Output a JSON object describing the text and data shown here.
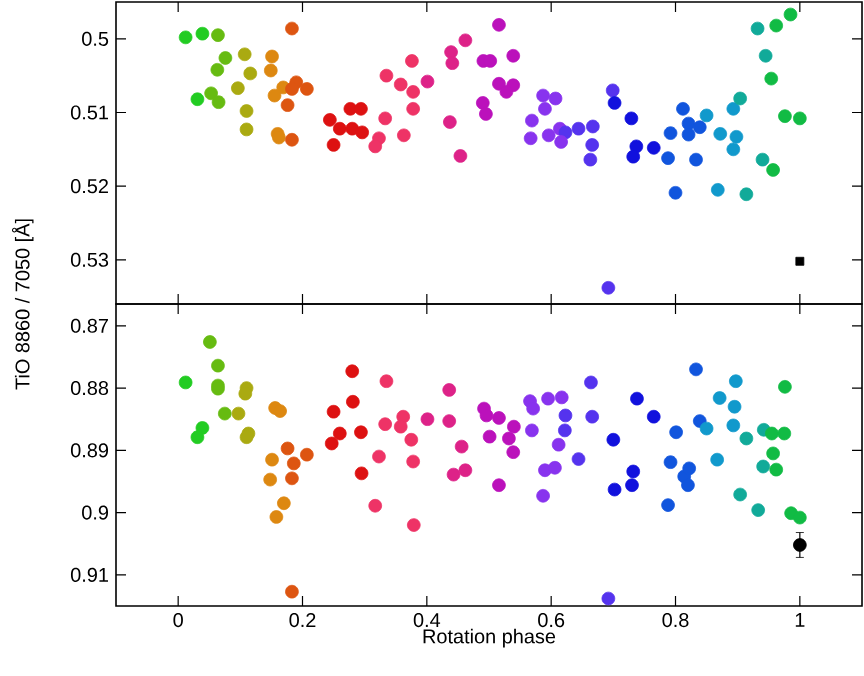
{
  "chart_data": [
    {
      "type": "scatter",
      "ylabel": "TiO 8860 / 7050 [Å]",
      "xlim": [
        -0.1,
        1.1
      ],
      "xticks": [
        0,
        0.2,
        0.4,
        0.6,
        0.8,
        1
      ],
      "ylim": [
        0.536,
        0.495
      ],
      "yticks": [
        0.5,
        0.51,
        0.52,
        0.53
      ],
      "tick_labels": "y",
      "marker": "circle",
      "series": [
        {
          "x": [
            0.012,
            0.039,
            0.064,
            0.183,
            0.076,
            0.107,
            0.151,
            0.063,
            0.116,
            0.149,
            0.031,
            0.053,
            0.065,
            0.096,
            0.155,
            0.169,
            0.19,
            0.183,
            0.207,
            0.176,
            0.11,
            0.11,
            0.16,
            0.162,
            0.183,
            0.244,
            0.26,
            0.277,
            0.294,
            0.28,
            0.296,
            0.25,
            0.323,
            0.317,
            0.333,
            0.335,
            0.358,
            0.376,
            0.378,
            0.401,
            0.378,
            0.363,
            0.439,
            0.441,
            0.462,
            0.516,
            0.491,
            0.502,
            0.539,
            0.516,
            0.539,
            0.528,
            0.49,
            0.495,
            0.437,
            0.454,
            0.587,
            0.607,
            0.59,
            0.569,
            0.567,
            0.596,
            0.614,
            0.623,
            0.616,
            0.644,
            0.667,
            0.666,
            0.663,
            0.699,
            0.702,
            0.729,
            0.692,
            0.737,
            0.732,
            0.765,
            0.788,
            0.792,
            0.812,
            0.821,
            0.821,
            0.839,
            0.85,
            0.8,
            0.833,
            0.872,
            0.893,
            0.904,
            0.898,
            0.893,
            0.868,
            0.914,
            0.94,
            0.957,
            0.932,
            0.962,
            0.985,
            0.945,
            0.954,
            0.976,
            1.0
          ],
          "values": [
            0.4998,
            0.4993,
            0.4995,
            0.4986,
            0.5026,
            0.5021,
            0.5024,
            0.5042,
            0.5047,
            0.5043,
            0.5082,
            0.5074,
            0.5086,
            0.5067,
            0.5077,
            0.5066,
            0.5059,
            0.5068,
            0.5068,
            0.509,
            0.5098,
            0.5123,
            0.5129,
            0.5134,
            0.5137,
            0.511,
            0.5122,
            0.5095,
            0.5095,
            0.5122,
            0.5127,
            0.5144,
            0.5135,
            0.5146,
            0.5108,
            0.505,
            0.5062,
            0.503,
            0.5072,
            0.5058,
            0.5095,
            0.5131,
            0.5018,
            0.5033,
            0.5002,
            0.4981,
            0.503,
            0.503,
            0.5023,
            0.5061,
            0.5063,
            0.5072,
            0.5087,
            0.5102,
            0.5113,
            0.5159,
            0.5077,
            0.5081,
            0.5095,
            0.5111,
            0.5135,
            0.5131,
            0.5122,
            0.5127,
            0.514,
            0.5122,
            0.5119,
            0.5144,
            0.5164,
            0.507,
            0.5087,
            0.5108,
            0.5338,
            0.5146,
            0.516,
            0.5148,
            0.5162,
            0.5128,
            0.5095,
            0.5115,
            0.513,
            0.512,
            0.5104,
            0.5209,
            0.5164,
            0.5129,
            0.5095,
            0.5081,
            0.5133,
            0.515,
            0.5205,
            0.5211,
            0.5164,
            0.5178,
            0.4986,
            0.4982,
            0.4967,
            0.5023,
            0.5054,
            0.5105,
            0.5108
          ],
          "colors": [
            "#22cc22",
            "#22cc22",
            "#66bb11",
            "#dd5511",
            "#66bb11",
            "#aaaa11",
            "#dd8811",
            "#66bb11",
            "#aaaa11",
            "#dd8811",
            "#22cc22",
            "#66bb11",
            "#66bb11",
            "#aaaa11",
            "#dd8811",
            "#dd8811",
            "#dd5511",
            "#dd5511",
            "#dd5511",
            "#dd5511",
            "#aaaa11",
            "#aaaa11",
            "#dd8811",
            "#dd8811",
            "#dd5511",
            "#dd1111",
            "#dd1111",
            "#dd1111",
            "#dd1111",
            "#dd1111",
            "#dd1111",
            "#dd1111",
            "#ee3366",
            "#ee3366",
            "#ee3366",
            "#ee3366",
            "#ee3366",
            "#ee3366",
            "#ee3366",
            "#dd2288",
            "#ee3366",
            "#ee3366",
            "#dd2288",
            "#dd2288",
            "#dd2288",
            "#bb11bb",
            "#bb11bb",
            "#bb11bb",
            "#bb11bb",
            "#bb11bb",
            "#bb11bb",
            "#bb11bb",
            "#bb11bb",
            "#bb11bb",
            "#dd2288",
            "#dd2288",
            "#8833ee",
            "#8833ee",
            "#8833ee",
            "#8833ee",
            "#8833ee",
            "#8833ee",
            "#8833ee",
            "#5533ee",
            "#8833ee",
            "#5533ee",
            "#5533ee",
            "#5533ee",
            "#5533ee",
            "#5533ee",
            "#1111dd",
            "#1111dd",
            "#5533ee",
            "#1111dd",
            "#1111dd",
            "#1111dd",
            "#1155dd",
            "#1155dd",
            "#1155dd",
            "#1155dd",
            "#1155dd",
            "#1155dd",
            "#1199cc",
            "#1155dd",
            "#1155dd",
            "#1199cc",
            "#1199cc",
            "#11aa99",
            "#1199cc",
            "#1199cc",
            "#1199cc",
            "#11aa99",
            "#11aa99",
            "#11bb44",
            "#11aa99",
            "#11bb44",
            "#11bb44",
            "#11aa99",
            "#11bb44",
            "#11bb44",
            "#11bb44"
          ]
        },
        {
          "x": [
            1.0
          ],
          "values": [
            0.5302
          ],
          "color": "#000000",
          "marker": "square"
        }
      ]
    },
    {
      "type": "scatter",
      "xlabel": "Rotation phase",
      "xlim": [
        -0.1,
        1.1
      ],
      "xticks": [
        0,
        0.2,
        0.4,
        0.6,
        0.8,
        1
      ],
      "ylim": [
        0.915,
        0.8665
      ],
      "yticks": [
        0.87,
        0.88,
        0.89,
        0.9,
        0.91
      ],
      "marker": "circle",
      "series": [
        {
          "x": [
            0.012,
            0.051,
            0.064,
            0.064,
            0.064,
            0.075,
            0.097,
            0.11,
            0.108,
            0.039,
            0.031,
            0.113,
            0.11,
            0.156,
            0.164,
            0.176,
            0.151,
            0.186,
            0.207,
            0.148,
            0.183,
            0.17,
            0.158,
            0.183,
            0.28,
            0.25,
            0.281,
            0.247,
            0.26,
            0.294,
            0.295,
            0.323,
            0.317,
            0.335,
            0.333,
            0.362,
            0.358,
            0.375,
            0.378,
            0.379,
            0.401,
            0.436,
            0.436,
            0.456,
            0.443,
            0.462,
            0.492,
            0.496,
            0.516,
            0.501,
            0.54,
            0.532,
            0.539,
            0.516,
            0.566,
            0.571,
            0.569,
            0.595,
            0.617,
            0.623,
            0.622,
            0.612,
            0.59,
            0.606,
            0.587,
            0.644,
            0.664,
            0.666,
            0.7,
            0.702,
            0.732,
            0.73,
            0.692,
            0.738,
            0.765,
            0.801,
            0.792,
            0.788,
            0.814,
            0.822,
            0.82,
            0.833,
            0.839,
            0.85,
            0.871,
            0.867,
            0.897,
            0.895,
            0.893,
            0.914,
            0.904,
            0.933,
            0.942,
            0.955,
            0.975,
            0.957,
            0.941,
            0.962,
            0.976,
            0.986,
            1.0
          ],
          "values": [
            0.8791,
            0.8726,
            0.8764,
            0.8796,
            0.8801,
            0.8841,
            0.8841,
            0.88,
            0.8809,
            0.8864,
            0.8879,
            0.8873,
            0.8879,
            0.8832,
            0.8837,
            0.8897,
            0.8915,
            0.8921,
            0.8907,
            0.8947,
            0.8945,
            0.8985,
            0.9007,
            0.9127,
            0.8773,
            0.8838,
            0.8822,
            0.8889,
            0.8873,
            0.8871,
            0.8937,
            0.891,
            0.8989,
            0.8789,
            0.8858,
            0.8846,
            0.8862,
            0.8883,
            0.8918,
            0.902,
            0.885,
            0.8803,
            0.8853,
            0.8894,
            0.8939,
            0.8932,
            0.8833,
            0.8844,
            0.8848,
            0.8878,
            0.8862,
            0.8881,
            0.8903,
            0.8956,
            0.8821,
            0.8833,
            0.8868,
            0.8817,
            0.8815,
            0.8844,
            0.8868,
            0.8891,
            0.8932,
            0.8928,
            0.8973,
            0.8914,
            0.8791,
            0.8846,
            0.8883,
            0.8963,
            0.8934,
            0.8956,
            0.9138,
            0.8817,
            0.8846,
            0.8871,
            0.8919,
            0.8988,
            0.8942,
            0.8929,
            0.8956,
            0.877,
            0.8853,
            0.8865,
            0.8816,
            0.8915,
            0.8789,
            0.883,
            0.886,
            0.8881,
            0.8971,
            0.8996,
            0.8867,
            0.8873,
            0.8873,
            0.8905,
            0.8926,
            0.8931,
            0.8798,
            0.9001,
            0.9008
          ],
          "colors": [
            "#22cc22",
            "#66bb11",
            "#66bb11",
            "#66bb11",
            "#66bb11",
            "#66bb11",
            "#aaaa11",
            "#aaaa11",
            "#aaaa11",
            "#22cc22",
            "#22cc22",
            "#aaaa11",
            "#aaaa11",
            "#dd8811",
            "#dd8811",
            "#dd5511",
            "#dd8811",
            "#dd5511",
            "#dd5511",
            "#dd8811",
            "#dd5511",
            "#dd8811",
            "#dd8811",
            "#dd5511",
            "#dd1111",
            "#dd1111",
            "#dd1111",
            "#dd1111",
            "#dd1111",
            "#dd1111",
            "#dd1111",
            "#ee3366",
            "#ee3366",
            "#ee3366",
            "#ee3366",
            "#ee3366",
            "#ee3366",
            "#ee3366",
            "#ee3366",
            "#ee3366",
            "#dd2288",
            "#dd2288",
            "#dd2288",
            "#dd2288",
            "#dd2288",
            "#dd2288",
            "#bb11bb",
            "#bb11bb",
            "#bb11bb",
            "#bb11bb",
            "#bb11bb",
            "#bb11bb",
            "#bb11bb",
            "#bb11bb",
            "#8833ee",
            "#8833ee",
            "#8833ee",
            "#8833ee",
            "#8833ee",
            "#5533ee",
            "#5533ee",
            "#8833ee",
            "#8833ee",
            "#8833ee",
            "#8833ee",
            "#5533ee",
            "#5533ee",
            "#5533ee",
            "#1111dd",
            "#1111dd",
            "#1111dd",
            "#1111dd",
            "#5533ee",
            "#1111dd",
            "#1111dd",
            "#1155dd",
            "#1155dd",
            "#1155dd",
            "#1155dd",
            "#1155dd",
            "#1155dd",
            "#1155dd",
            "#1155dd",
            "#1199cc",
            "#1199cc",
            "#1199cc",
            "#1199cc",
            "#1199cc",
            "#1199cc",
            "#11aa99",
            "#11aa99",
            "#11aa99",
            "#11aa99",
            "#11bb44",
            "#11bb44",
            "#11bb44",
            "#11aa99",
            "#11bb44",
            "#11bb44",
            "#11bb44",
            "#11bb44"
          ]
        },
        {
          "x": [
            1.0
          ],
          "values": [
            0.9052
          ],
          "errors": [
            0.002
          ],
          "color": "#000000",
          "marker": "circle"
        }
      ]
    }
  ]
}
